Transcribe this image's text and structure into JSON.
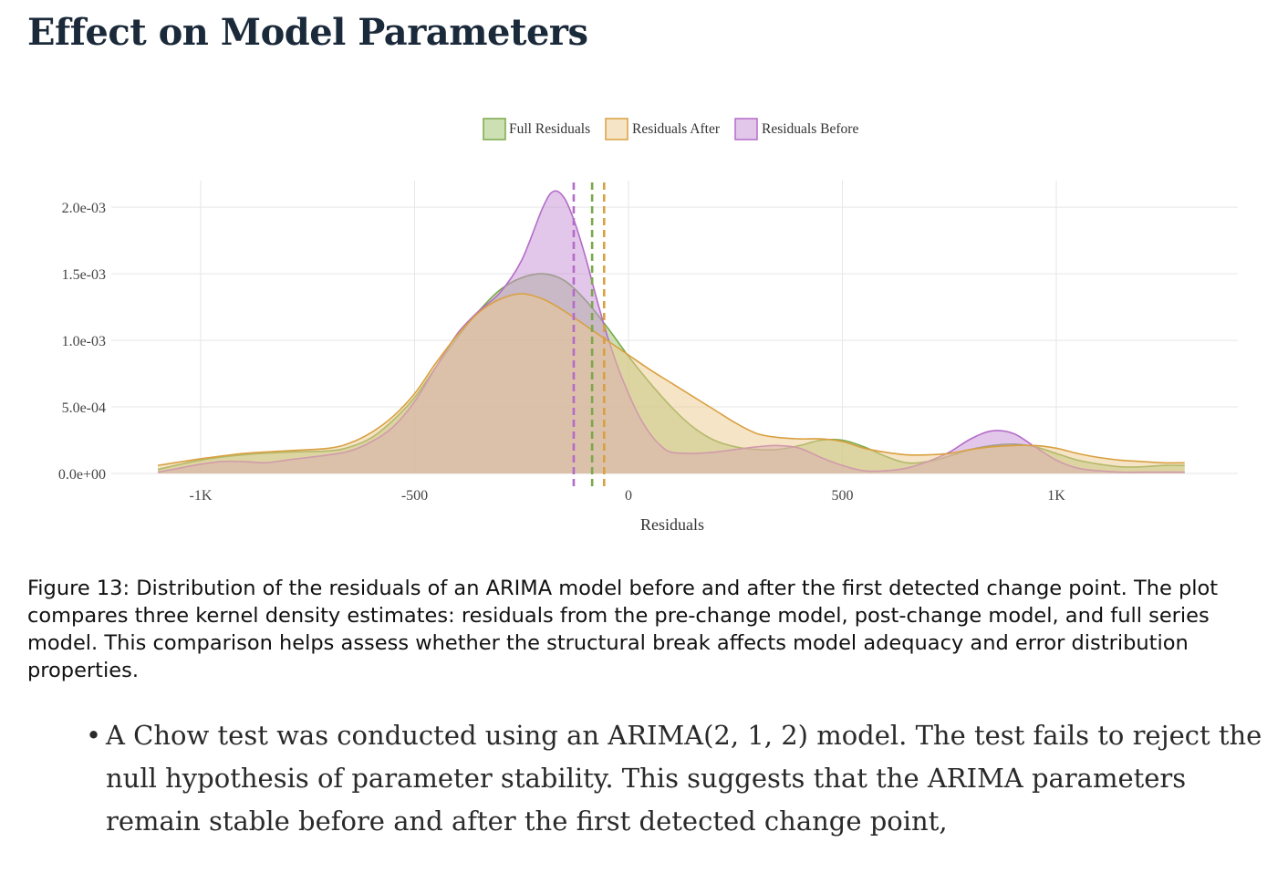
{
  "heading": "Effect on Model Parameters",
  "chart_data": {
    "type": "area",
    "xlabel": "Residuals",
    "ylabel": "",
    "xlim": [
      -1100,
      1420
    ],
    "ylim": [
      0,
      0.0022
    ],
    "grid": true,
    "legend_position": "top-center",
    "x_ticks": [
      {
        "value": -1000,
        "label": "-1K"
      },
      {
        "value": -500,
        "label": "-500"
      },
      {
        "value": 0,
        "label": "0"
      },
      {
        "value": 500,
        "label": "500"
      },
      {
        "value": 1000,
        "label": "1K"
      }
    ],
    "y_ticks": [
      {
        "value": 0,
        "label": "0.0e+00"
      },
      {
        "value": 0.0005,
        "label": "5.0e-04"
      },
      {
        "value": 0.001,
        "label": "1.0e-03"
      },
      {
        "value": 0.0015,
        "label": "1.5e-03"
      },
      {
        "value": 0.002,
        "label": "2.0e-03"
      }
    ],
    "series": [
      {
        "name": "Full Residuals",
        "color": "#7aa84a",
        "fill": "#9cc16a",
        "mean": -85,
        "x": [
          -1100,
          -1000,
          -900,
          -800,
          -700,
          -650,
          -600,
          -550,
          -500,
          -450,
          -400,
          -350,
          -300,
          -250,
          -200,
          -150,
          -100,
          -50,
          0,
          50,
          100,
          150,
          200,
          250,
          300,
          350,
          400,
          450,
          500,
          550,
          600,
          650,
          700,
          750,
          800,
          850,
          900,
          950,
          1000,
          1050,
          1100,
          1150,
          1200,
          1250,
          1300
        ],
        "y": [
          3e-05,
          0.0001,
          0.00014,
          0.00016,
          0.00017,
          0.0002,
          0.00027,
          0.0004,
          0.00057,
          0.0008,
          0.00102,
          0.00122,
          0.00138,
          0.00147,
          0.0015,
          0.00145,
          0.0013,
          0.0011,
          0.00088,
          0.00068,
          0.0005,
          0.00035,
          0.00025,
          0.0002,
          0.00018,
          0.00018,
          0.00021,
          0.00025,
          0.00025,
          0.0002,
          0.00013,
          8e-05,
          9e-05,
          0.00013,
          0.00018,
          0.00021,
          0.00022,
          0.0002,
          0.00015,
          0.0001,
          7e-05,
          5e-05,
          5e-05,
          6e-05,
          6e-05
        ]
      },
      {
        "name": "Residuals After",
        "color": "#d9a040",
        "fill": "#edc98e",
        "mean": -57,
        "x": [
          -1100,
          -1000,
          -900,
          -800,
          -700,
          -650,
          -600,
          -550,
          -500,
          -450,
          -400,
          -350,
          -300,
          -250,
          -200,
          -150,
          -100,
          -50,
          0,
          50,
          100,
          150,
          200,
          250,
          300,
          350,
          400,
          450,
          500,
          550,
          600,
          650,
          700,
          750,
          800,
          850,
          900,
          950,
          1000,
          1050,
          1100,
          1150,
          1200,
          1250,
          1300
        ],
        "y": [
          6e-05,
          0.00011,
          0.00015,
          0.00017,
          0.00019,
          0.00023,
          0.00031,
          0.00043,
          0.0006,
          0.00083,
          0.00104,
          0.00121,
          0.00131,
          0.00135,
          0.00131,
          0.00122,
          0.00111,
          0.001,
          0.00089,
          0.00078,
          0.00068,
          0.00058,
          0.00048,
          0.00038,
          0.0003,
          0.00027,
          0.00026,
          0.00026,
          0.00024,
          0.00019,
          0.00016,
          0.00014,
          0.00014,
          0.00015,
          0.00018,
          0.0002,
          0.00021,
          0.00021,
          0.00019,
          0.00015,
          0.00012,
          0.0001,
          9e-05,
          8e-05,
          8e-05
        ]
      },
      {
        "name": "Residuals Before",
        "color": "#b46cc8",
        "fill": "#c690d6",
        "mean": -128,
        "x": [
          -1100,
          -1050,
          -1000,
          -950,
          -900,
          -850,
          -800,
          -750,
          -700,
          -650,
          -600,
          -550,
          -500,
          -450,
          -400,
          -350,
          -300,
          -250,
          -200,
          -175,
          -150,
          -125,
          -100,
          -75,
          -50,
          -25,
          0,
          25,
          50,
          75,
          100,
          150,
          200,
          250,
          300,
          350,
          400,
          450,
          500,
          550,
          600,
          650,
          700,
          750,
          800,
          850,
          900,
          950,
          1000,
          1050,
          1100,
          1150,
          1200,
          1250,
          1300
        ],
        "y": [
          1e-05,
          4e-05,
          7e-05,
          9e-05,
          9e-05,
          8e-05,
          0.0001,
          0.00012,
          0.00014,
          0.00017,
          0.00024,
          0.00035,
          0.00054,
          0.0008,
          0.00105,
          0.00122,
          0.00136,
          0.0016,
          0.002,
          0.00212,
          0.00207,
          0.00188,
          0.00162,
          0.00132,
          0.00104,
          0.0008,
          0.0006,
          0.00043,
          0.0003,
          0.00021,
          0.00016,
          0.00015,
          0.00016,
          0.00018,
          0.0002,
          0.00021,
          0.00019,
          0.00012,
          6e-05,
          2e-05,
          2e-05,
          4e-05,
          9e-05,
          0.00016,
          0.00026,
          0.00032,
          0.0003,
          0.0002,
          0.0001,
          4e-05,
          2e-05,
          1e-05,
          1e-05,
          1e-05,
          1e-05
        ]
      }
    ]
  },
  "caption": "Figure 13: Distribution of the residuals of an ARIMA model before and after the first detected change point. The plot compares three kernel density estimates: residuals from the pre-change model, post-change model, and full series model. This comparison helps assess whether the structural break affects model adequacy and error distribution properties.",
  "bullets": [
    {
      "marker": "•",
      "text": "A Chow test was conducted using an ARIMA(2, 1, 2) model. The test fails to reject the null hypothesis of parameter stability. This suggests that the ARIMA parameters remain stable before and after the first detected change point,"
    }
  ]
}
